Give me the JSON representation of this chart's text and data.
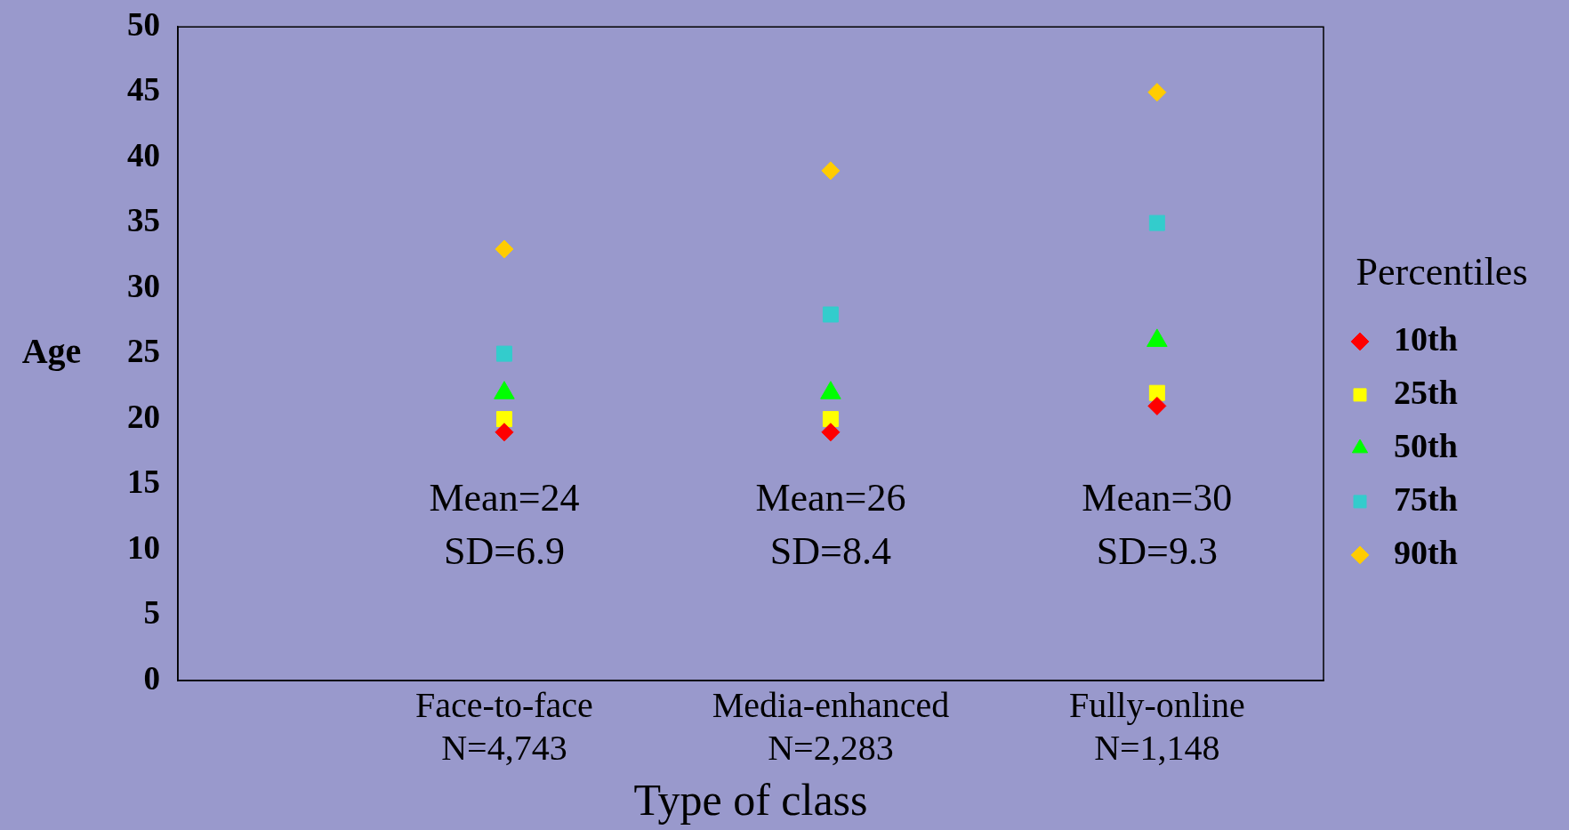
{
  "chart_data": {
    "type": "scatter",
    "categories": [
      "Face-to-face\nN=4,743",
      "Media-enhanced\nN=2,283",
      "Fully-online\nN=1,148"
    ],
    "series": [
      {
        "name": "10th",
        "color": "#ff0000",
        "marker": "diamond",
        "values": [
          19,
          19,
          21
        ]
      },
      {
        "name": "25th",
        "color": "#ffff00",
        "marker": "square",
        "values": [
          20,
          20,
          22
        ]
      },
      {
        "name": "50th",
        "color": "#00ff00",
        "marker": "triangle",
        "values": [
          22,
          22,
          26
        ]
      },
      {
        "name": "75th",
        "color": "#33cccc",
        "marker": "square",
        "values": [
          25,
          28,
          35
        ]
      },
      {
        "name": "90th",
        "color": "#ffcc00",
        "marker": "diamond",
        "values": [
          33,
          39,
          45
        ]
      }
    ],
    "xlabel": "Type of class",
    "ylabel": "Age",
    "legend_title": "Percentiles",
    "legend": "right",
    "ylim": [
      0,
      50
    ],
    "yticks": [
      0,
      5,
      10,
      15,
      20,
      25,
      30,
      35,
      40,
      45,
      50
    ],
    "grid": false,
    "annotations": [
      "Mean=24\nSD=6.9",
      "Mean=26\nSD=8.4",
      "Mean=30\nSD=9.3"
    ]
  }
}
